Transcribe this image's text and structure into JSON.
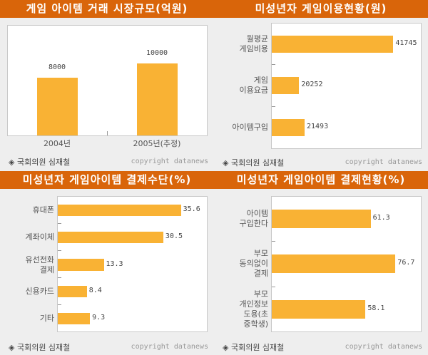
{
  "source_label": "◈ 국회의원 심재철",
  "copyright": "copyright datanews",
  "colors": {
    "title_bg": "#d9650a",
    "bar": "#f9b234",
    "background": "#eeeeee"
  },
  "chart_data": [
    {
      "type": "bar",
      "orientation": "vertical",
      "title": "게임 아이템 거래 시장규모(억원)",
      "categories": [
        "2004년",
        "2005년(추정)"
      ],
      "values": [
        8000,
        10000
      ],
      "value_labels": [
        "8000",
        "10000"
      ],
      "ylim": [
        0,
        15500
      ]
    },
    {
      "type": "bar",
      "orientation": "horizontal",
      "title": "미성년자 게임이용현황(원)",
      "categories": [
        "월평균\n게임비용",
        "게임\n이용요금",
        "아이템구입"
      ],
      "values": [
        41745,
        20252,
        21493
      ],
      "value_labels": [
        "41745",
        "20252",
        "21493"
      ],
      "xlim": [
        14000,
        48200
      ]
    },
    {
      "type": "bar",
      "orientation": "horizontal",
      "title": "미성년자 게임아이템 결제수단(%)",
      "categories": [
        "휴대폰",
        "계좌이체",
        "유선전화\n결제",
        "신용카드",
        "기타"
      ],
      "values": [
        35.6,
        30.5,
        13.3,
        8.4,
        9.3
      ],
      "value_labels": [
        "35.6",
        "30.5",
        "13.3",
        "8.4",
        "9.3"
      ],
      "xlim": [
        0,
        43.3
      ]
    },
    {
      "type": "bar",
      "orientation": "horizontal",
      "title": "미성년자 게임아이템 결제현황(%)",
      "categories": [
        "아이템\n구입한다",
        "부모\n동의없이\n결제",
        "부모\n개인정보\n도용(초\n중학생)"
      ],
      "values": [
        61.3,
        76.7,
        58.1
      ],
      "value_labels": [
        "61.3",
        "76.7",
        "58.1"
      ],
      "xlim": [
        0,
        92.9
      ]
    }
  ]
}
